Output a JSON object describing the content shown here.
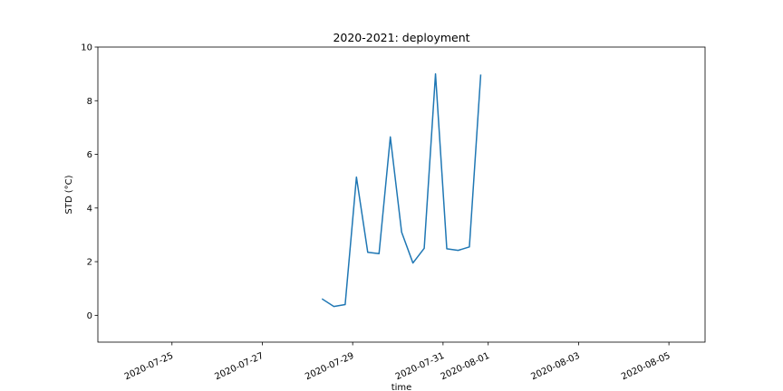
{
  "chart_data": {
    "type": "line",
    "title": "2020-2021: deployment",
    "xlabel": "time",
    "ylabel": "STD (°C)",
    "xlim": [
      "2020-07-23 08:38",
      "2020-08-05 19:12"
    ],
    "ylim": [
      -1,
      10
    ],
    "x_ticks": [
      "2020-07-25",
      "2020-07-27",
      "2020-07-29",
      "2020-07-31",
      "2020-08-01",
      "2020-08-03",
      "2020-08-05"
    ],
    "y_ticks": [
      0,
      2,
      4,
      6,
      8,
      10
    ],
    "grid": false,
    "legend": "none",
    "series": [
      {
        "color": "#1f77b4",
        "x": [
          "2020-07-28 08:00",
          "2020-07-28 14:00",
          "2020-07-28 20:00",
          "2020-07-29 02:00",
          "2020-07-29 08:00",
          "2020-07-29 14:00",
          "2020-07-29 20:00",
          "2020-07-30 02:00",
          "2020-07-30 08:00",
          "2020-07-30 14:00",
          "2020-07-30 20:00",
          "2020-07-31 02:00",
          "2020-07-31 08:00",
          "2020-07-31 14:00",
          "2020-07-31 20:00"
        ],
        "values": [
          0.6,
          0.33,
          0.4,
          5.15,
          2.35,
          2.3,
          6.65,
          3.1,
          1.95,
          2.5,
          9.0,
          2.48,
          2.42,
          2.55,
          8.95
        ]
      }
    ]
  }
}
